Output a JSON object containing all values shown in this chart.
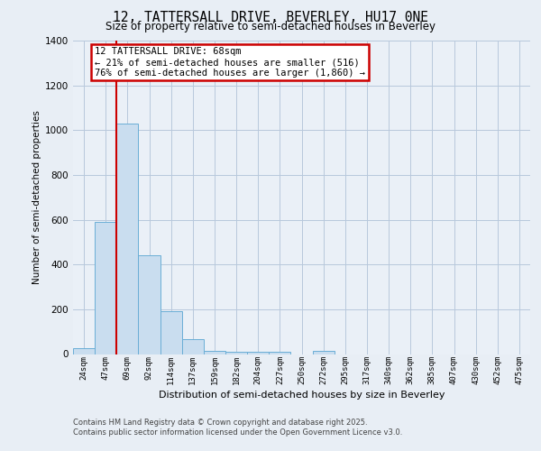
{
  "title_line1": "12, TATTERSALL DRIVE, BEVERLEY, HU17 0NE",
  "title_line2": "Size of property relative to semi-detached houses in Beverley",
  "xlabel": "Distribution of semi-detached houses by size in Beverley",
  "ylabel": "Number of semi-detached properties",
  "categories": [
    "24sqm",
    "47sqm",
    "69sqm",
    "92sqm",
    "114sqm",
    "137sqm",
    "159sqm",
    "182sqm",
    "204sqm",
    "227sqm",
    "250sqm",
    "272sqm",
    "295sqm",
    "317sqm",
    "340sqm",
    "362sqm",
    "385sqm",
    "407sqm",
    "430sqm",
    "452sqm",
    "475sqm"
  ],
  "values": [
    25,
    590,
    1030,
    440,
    190,
    65,
    15,
    10,
    10,
    10,
    0,
    15,
    0,
    0,
    0,
    0,
    0,
    0,
    0,
    0,
    0
  ],
  "bar_color": "#c9ddef",
  "bar_edge_color": "#6aaed6",
  "ylim": [
    0,
    1400
  ],
  "yticks": [
    0,
    200,
    400,
    600,
    800,
    1000,
    1200,
    1400
  ],
  "red_line_index": 2,
  "red_line_color": "#cc0000",
  "annotation_text": "12 TATTERSALL DRIVE: 68sqm\n← 21% of semi-detached houses are smaller (516)\n76% of semi-detached houses are larger (1,860) →",
  "annotation_box_color": "#cc0000",
  "bg_color": "#e8eef5",
  "plot_bg_color": "#eaf0f7",
  "grid_color": "#b8c8dc",
  "footer_line1": "Contains HM Land Registry data © Crown copyright and database right 2025.",
  "footer_line2": "Contains public sector information licensed under the Open Government Licence v3.0."
}
